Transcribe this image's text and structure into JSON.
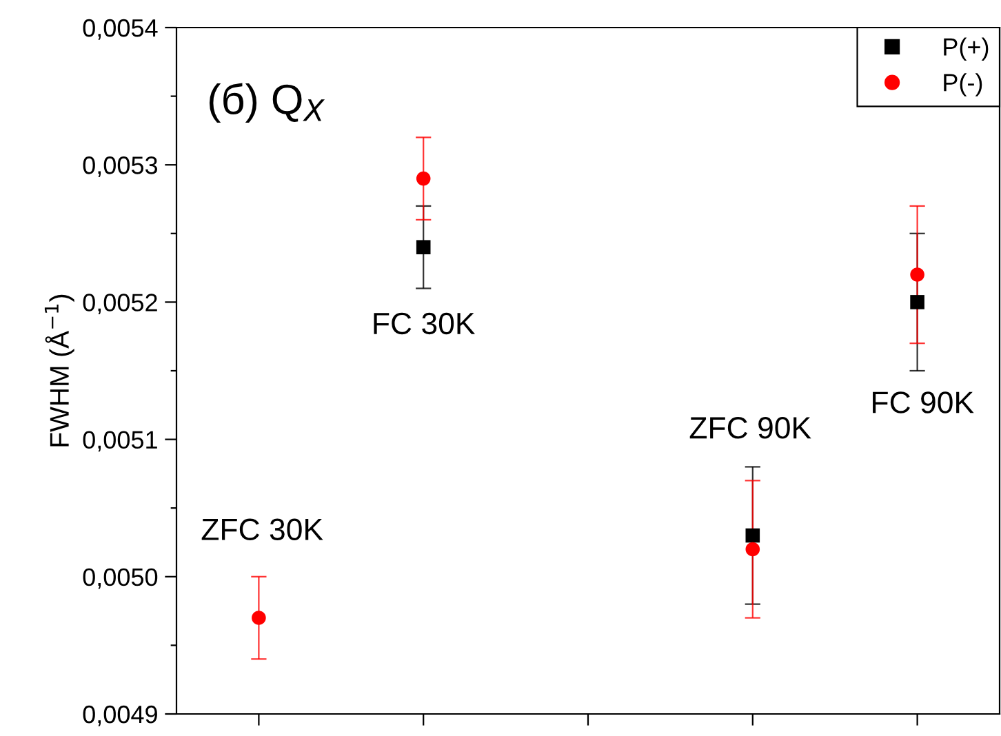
{
  "chart_data": {
    "type": "scatter",
    "ylabel": "FWHM (Å$^{−1}$)",
    "categories": [
      null,
      null,
      null,
      null,
      null
    ],
    "series": [
      {
        "name": "P(+)",
        "color": "#000000",
        "marker": "square",
        "values": [
          null,
          0.00524,
          null,
          0.00503,
          0.0052
        ],
        "errors": [
          null,
          3e-05,
          null,
          5e-05,
          5e-05
        ]
      },
      {
        "name": "P(-)",
        "color": "#ff0000",
        "marker": "circle",
        "values": [
          0.00497,
          0.00529,
          null,
          0.00502,
          0.00522
        ],
        "errors": [
          3e-05,
          3e-05,
          null,
          5e-05,
          5e-05
        ]
      }
    ],
    "ylim": [
      0.0049,
      0.0054
    ],
    "yticks": [
      {
        "value": 0.0049,
        "label": "0,0049"
      },
      {
        "value": 0.00495,
        "label": null
      },
      {
        "value": 0.005,
        "label": "0,0050"
      },
      {
        "value": 0.00505,
        "label": null
      },
      {
        "value": 0.0051,
        "label": "0,0051"
      },
      {
        "value": 0.00515,
        "label": null
      },
      {
        "value": 0.0052,
        "label": "0,0052"
      },
      {
        "value": 0.00525,
        "label": null
      },
      {
        "value": 0.0053,
        "label": "0,0053"
      },
      {
        "value": 0.00535,
        "label": null
      },
      {
        "value": 0.0054,
        "label": "0,0054"
      }
    ],
    "tick_labels": "y",
    "annotations": [
      "(б) Q$_{X}$",
      "ZFC 30K",
      "FC 30K",
      "ZFC 90K",
      "FC 90K"
    ],
    "legend": "top right",
    "grid": false
  }
}
